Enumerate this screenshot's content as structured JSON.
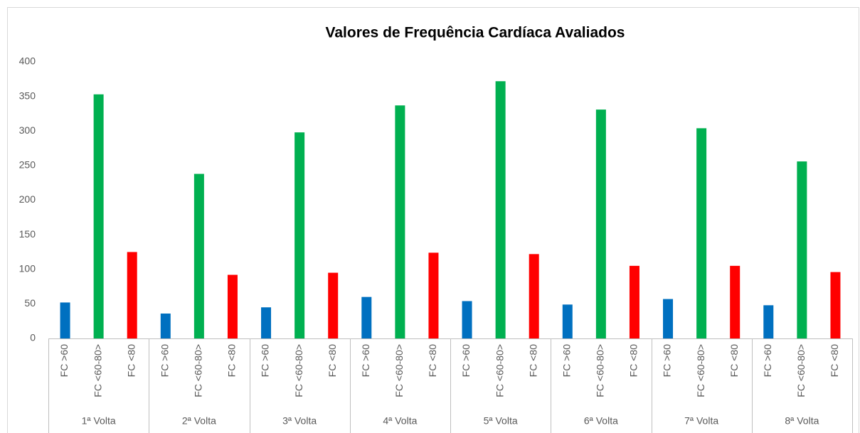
{
  "chart_data": {
    "type": "bar",
    "title": "Valores de Frequência Cardíaca Avaliados",
    "categories": [
      "1ª Volta",
      "2ª Volta",
      "3ª Volta",
      "4ª Volta",
      "5ª Volta",
      "6ª Volta",
      "7ª Volta",
      "8ª Volta"
    ],
    "series": [
      {
        "name": "FC >60",
        "color": "#0070c0",
        "values": [
          52,
          36,
          45,
          60,
          54,
          49,
          57,
          48
        ]
      },
      {
        "name": "FC <60-80>",
        "color": "#00b050",
        "values": [
          353,
          238,
          298,
          337,
          372,
          331,
          304,
          256
        ]
      },
      {
        "name": "FC <80",
        "color": "#ff0000",
        "values": [
          125,
          92,
          95,
          124,
          122,
          105,
          105,
          96
        ]
      }
    ],
    "ylim": [
      0,
      400
    ],
    "yticks": [
      0,
      50,
      100,
      150,
      200,
      250,
      300,
      350,
      400
    ],
    "grid": false
  }
}
